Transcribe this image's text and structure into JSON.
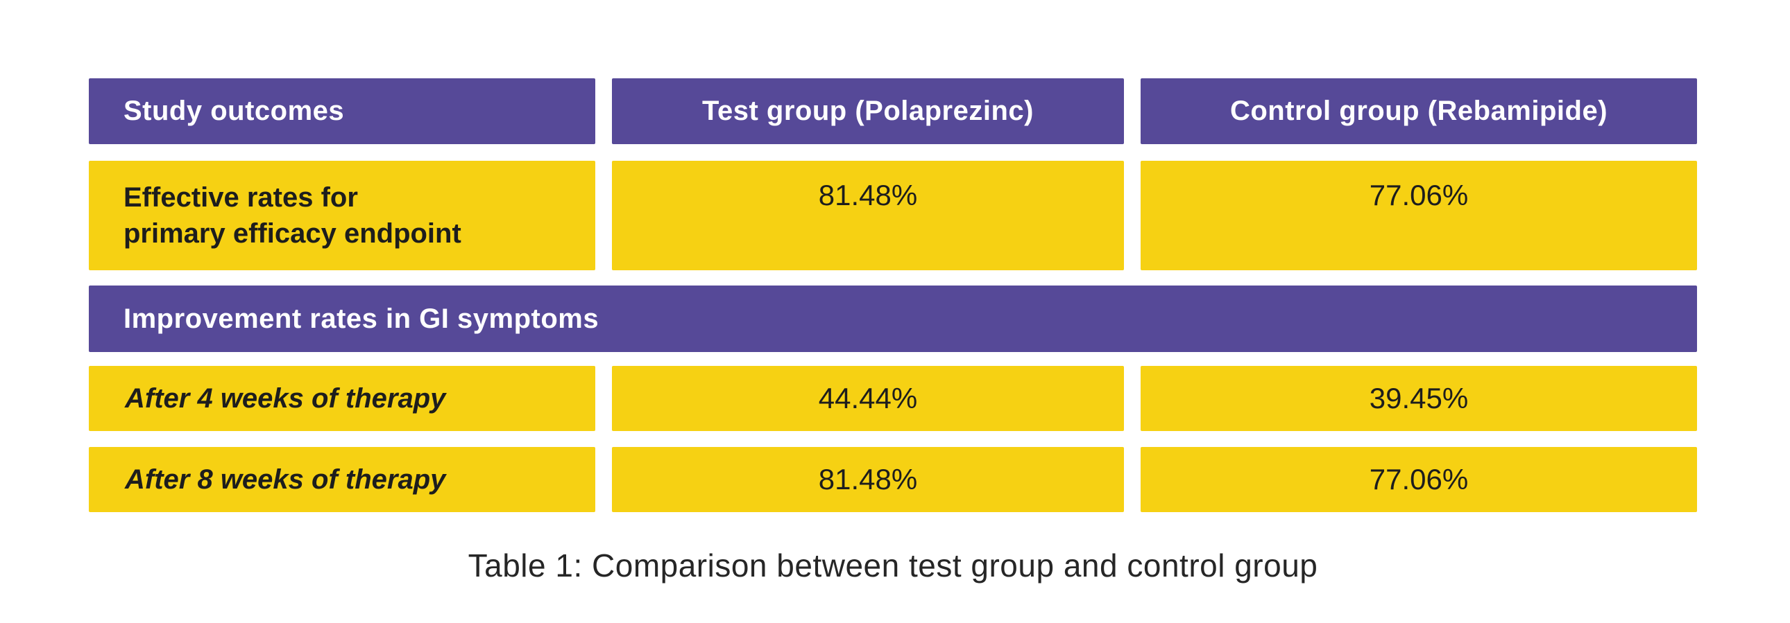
{
  "colors": {
    "purple": "#564998",
    "yellow": "#F6D113",
    "header_text": "#FFFFFF",
    "body_text": "#1D1D1D",
    "background": "#FFFFFF"
  },
  "table": {
    "header": {
      "col1": "Study outcomes",
      "col2": "Test group (Polaprezinc)",
      "col3": "Control group (Rebamipide)"
    },
    "row_effective": {
      "label_line1": "Effective rates for",
      "label_line2": "primary efficacy endpoint",
      "test_value": "81.48%",
      "control_value": "77.06%"
    },
    "section_header": {
      "label": "Improvement rates in GI symptoms"
    },
    "row_week4": {
      "label": "After 4 weeks of therapy",
      "test_value": "44.44%",
      "control_value": "39.45%"
    },
    "row_week8": {
      "label": "After 8 weeks of therapy",
      "test_value": "81.48%",
      "control_value": "77.06%"
    },
    "caption": "Table 1: Comparison between test group and control group"
  }
}
